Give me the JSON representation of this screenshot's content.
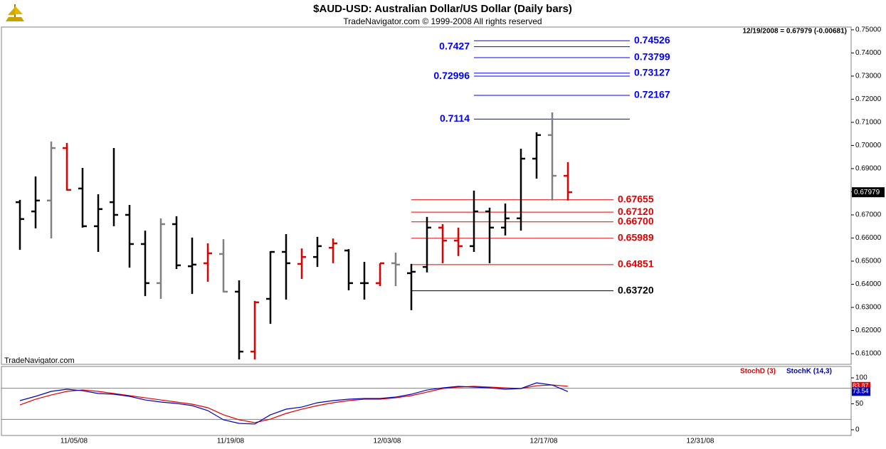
{
  "chart_data": {
    "type": "ohlc",
    "title": "$AUD-USD:  Australian Dollar/US Dollar  (Daily bars)",
    "subtitle": "TradeNavigator.com © 1999-2008 All rights reserved",
    "info": "12/19/2008 = 0.67979 (-0.00681)",
    "watermark": "TradeNavigator.com",
    "x_labels": [
      "11/05/08",
      "11/19/08",
      "12/03/08",
      "12/17/08",
      "12/31/08"
    ],
    "open": [
      0.6755,
      0.6715,
      0.6762,
      0.6989,
      0.6814,
      0.6651,
      0.6755,
      0.67,
      0.6574,
      0.6405,
      0.666,
      0.6478,
      0.6491,
      0.6531,
      0.6368,
      0.6109,
      0.6337,
      0.654,
      0.6488,
      0.6518,
      0.6558,
      0.6546,
      0.6405,
      0.6405,
      0.6491,
      0.6448,
      0.6475,
      0.6645,
      0.6589,
      0.6565,
      0.6715,
      0.6645,
      0.6685,
      0.6943,
      0.7045,
      0.6869
    ],
    "high": [
      0.6765,
      0.6866,
      0.7017,
      0.7011,
      0.6903,
      0.6789,
      0.6989,
      0.6743,
      0.6632,
      0.6685,
      0.6694,
      0.6602,
      0.6577,
      0.6595,
      0.6417,
      0.6328,
      0.6543,
      0.6617,
      0.6555,
      0.6605,
      0.6598,
      0.6552,
      0.6497,
      0.6491,
      0.6537,
      0.6488,
      0.6691,
      0.666,
      0.6645,
      0.6805,
      0.6731,
      0.6749,
      0.6986,
      0.7057,
      0.7143,
      0.6928
    ],
    "low": [
      0.6549,
      0.6642,
      0.6598,
      0.6805,
      0.6645,
      0.654,
      0.6651,
      0.6472,
      0.6349,
      0.6337,
      0.6466,
      0.6358,
      0.6411,
      0.6365,
      0.6075,
      0.6075,
      0.6229,
      0.6334,
      0.6423,
      0.6475,
      0.6491,
      0.6374,
      0.6334,
      0.6392,
      0.6392,
      0.6288,
      0.6451,
      0.6491,
      0.6522,
      0.654,
      0.6491,
      0.6611,
      0.6632,
      0.6857,
      0.6762,
      0.6762
    ],
    "close": [
      0.6682,
      0.6762,
      0.6989,
      0.6808,
      0.6651,
      0.6725,
      0.67,
      0.6574,
      0.6405,
      0.666,
      0.6482,
      0.6485,
      0.6534,
      0.6368,
      0.6109,
      0.6322,
      0.654,
      0.6491,
      0.6518,
      0.6565,
      0.6577,
      0.6405,
      0.6405,
      0.6491,
      0.6485,
      0.6454,
      0.6645,
      0.6589,
      0.6565,
      0.6715,
      0.6645,
      0.6685,
      0.6943,
      0.7045,
      0.6869,
      0.67979
    ],
    "colors": [
      "#000000",
      "#000000",
      "#808080",
      "#e00000",
      "#000000",
      "#000000",
      "#000000",
      "#000000",
      "#000000",
      "#808080",
      "#000000",
      "#000000",
      "#e00000",
      "#808080",
      "#000000",
      "#e00000",
      "#000000",
      "#000000",
      "#e00000",
      "#000000",
      "#e00000",
      "#000000",
      "#000000",
      "#e00000",
      "#808080",
      "#000000",
      "#000000",
      "#e00000",
      "#e00000",
      "#000000",
      "#000000",
      "#000000",
      "#000000",
      "#000000",
      "#808080",
      "#e00000"
    ],
    "ylim": [
      0.6054,
      0.7512
    ],
    "yticks": [
      {
        "value": 0.75,
        "label": "0.75000"
      },
      {
        "value": 0.74,
        "label": "0.74000"
      },
      {
        "value": 0.73,
        "label": "0.73000"
      },
      {
        "value": 0.72,
        "label": "0.72000"
      },
      {
        "value": 0.71,
        "label": "0.71000"
      },
      {
        "value": 0.7,
        "label": "0.70000"
      },
      {
        "value": 0.69,
        "label": "0.69000"
      },
      {
        "value": 0.68,
        "label": "0.68000"
      },
      {
        "value": 0.67,
        "label": "0.67000"
      },
      {
        "value": 0.66,
        "label": "0.66000"
      },
      {
        "value": 0.65,
        "label": "0.65000"
      },
      {
        "value": 0.64,
        "label": "0.64000"
      },
      {
        "value": 0.63,
        "label": "0.63000"
      },
      {
        "value": 0.62,
        "label": "0.62000"
      },
      {
        "value": 0.61,
        "label": "0.61000"
      }
    ],
    "levels": [
      {
        "value": 0.74526,
        "side": "right",
        "color": "#0000ff"
      },
      {
        "value": 0.7427,
        "side": "left",
        "color": "#0000ff"
      },
      {
        "value": 0.73799,
        "side": "right",
        "color": "#0000ff"
      },
      {
        "value": 0.73127,
        "side": "right",
        "color": "#0000ff"
      },
      {
        "value": 0.72996,
        "side": "left",
        "color": "#0000ff"
      },
      {
        "value": 0.72167,
        "side": "right",
        "color": "#0000ff"
      },
      {
        "value": 0.7114,
        "side": "left",
        "color": "#0000ff"
      },
      {
        "value": 0.67655,
        "side": "right",
        "color": "#e00000"
      },
      {
        "value": 0.6712,
        "label": "0.67120",
        "side": "right",
        "color": "#e00000"
      },
      {
        "value": 0.667,
        "label": "0.66700",
        "side": "right",
        "color": "#e00000"
      },
      {
        "value": 0.65989,
        "side": "right",
        "color": "#e00000"
      },
      {
        "value": 0.64851,
        "side": "right",
        "color": "#e00000"
      },
      {
        "value": 0.6372,
        "label": "0.63720",
        "side": "right",
        "color": "#000000"
      }
    ],
    "stoch": {
      "type": "line",
      "ylim": [
        -11,
        122
      ],
      "yticks": [
        0,
        50,
        100
      ],
      "levels": [
        20,
        80
      ],
      "series": [
        {
          "name": "StochD (3)",
          "color": "#e00000",
          "values": [
            47.9,
            58.9,
            67.1,
            74.0,
            76.7,
            74.0,
            69.9,
            65.8,
            61.6,
            57.5,
            53.4,
            49.3,
            42.5,
            28.8,
            19.2,
            13.7,
            20.5,
            31.5,
            39.7,
            46.6,
            52.1,
            56.2,
            58.9,
            58.9,
            61.6,
            65.8,
            72.6,
            79.5,
            82.2,
            83.6,
            82.2,
            80.8,
            79.5,
            84.9,
            86.3,
            83.87
          ]
        },
        {
          "name": "StochK (14,3)",
          "color": "#0000c0",
          "values": [
            56.2,
            64.4,
            74.0,
            78.1,
            75.3,
            69.9,
            68.5,
            64.4,
            57.5,
            53.4,
            50.7,
            46.6,
            37.0,
            19.2,
            12.3,
            11.0,
            28.8,
            39.7,
            43.8,
            52.1,
            56.2,
            58.9,
            60.3,
            60.3,
            63.0,
            68.5,
            76.7,
            80.8,
            83.6,
            82.2,
            80.8,
            78.1,
            79.5,
            90.4,
            86.3,
            73.54
          ]
        }
      ]
    }
  }
}
